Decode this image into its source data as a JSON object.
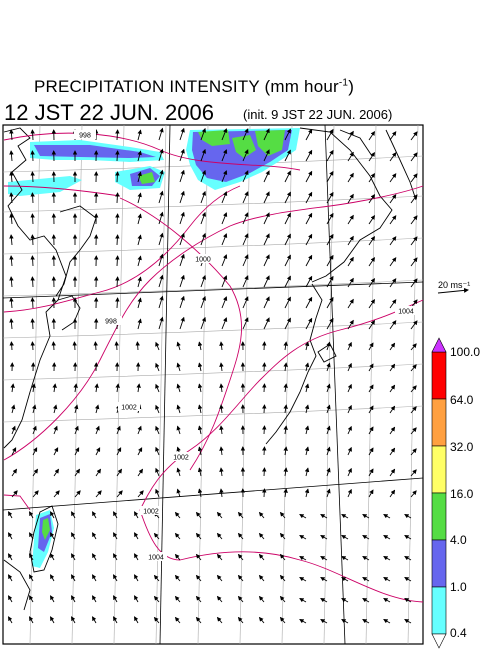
{
  "title": {
    "main": "PRECIPITATION INTENSITY (mm hour",
    "exp": "-1",
    "close": ")"
  },
  "datetime": "12 JST 22 JUN. 2006",
  "init": "(init. 9 JST 22 JUN. 2006)",
  "vector_reference": "20 ms⁻¹",
  "colorbar": {
    "levels": [
      "100.0",
      "64.0",
      "32.0",
      "16.0",
      "4.0",
      "1.0",
      "0.4"
    ],
    "colors": [
      "#ff0000",
      "#ffa040",
      "#ffff66",
      "#55dd44",
      "#6666ee",
      "#66ffff"
    ],
    "top_triangle": "#cc33ff",
    "bottom_triangle": "#ffffff"
  },
  "isobars": [
    "998",
    "1000",
    "998",
    "1002",
    "1002",
    "1002",
    "1004",
    "1004"
  ],
  "colors": {
    "coast": "#000000",
    "isobar": "#cc0066",
    "grid": "#999999"
  }
}
